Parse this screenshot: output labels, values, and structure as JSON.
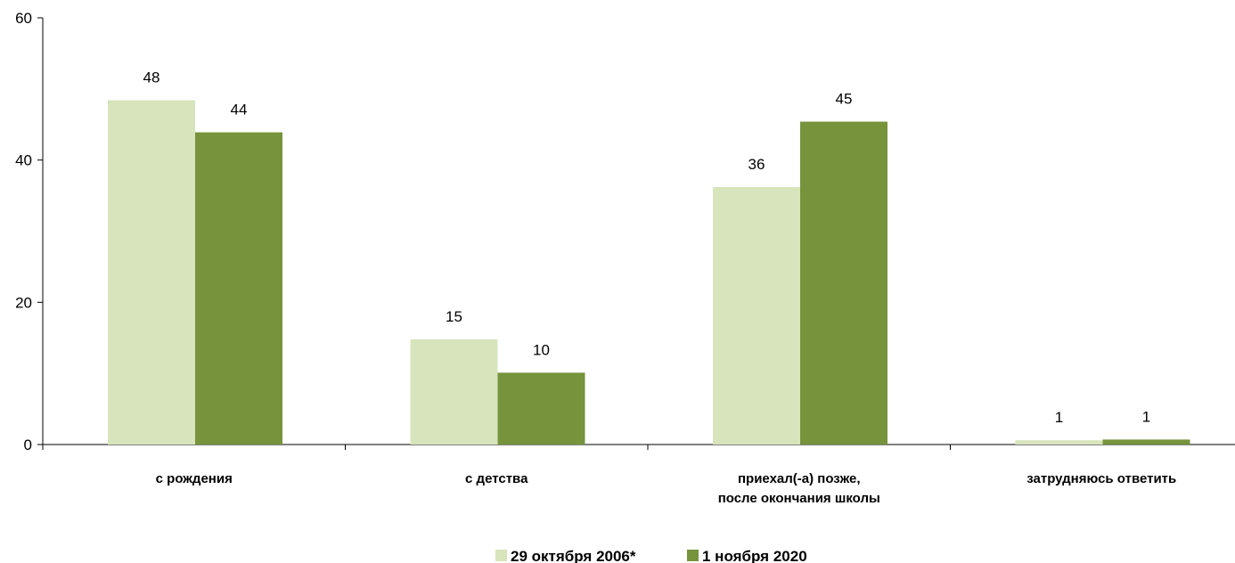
{
  "chart_data": {
    "type": "bar",
    "categories": [
      [
        "с рождения"
      ],
      [
        "с детства"
      ],
      [
        "приехал(-а) позже,",
        "после окончания школы"
      ],
      [
        "затрудняюсь ответить"
      ]
    ],
    "series": [
      {
        "name": "29 октября 2006*",
        "values": [
          48.4,
          14.8,
          36.2,
          0.6
        ],
        "labels": [
          "48",
          "15",
          "36",
          "1"
        ],
        "color": "#d8e4bc"
      },
      {
        "name": "1 ноября 2020",
        "values": [
          43.9,
          10.1,
          45.4,
          0.7
        ],
        "labels": [
          "44",
          "10",
          "45",
          "1"
        ],
        "color": "#77933c"
      }
    ],
    "yticks": [
      "0",
      "20",
      "40",
      "60"
    ],
    "ylim": [
      0,
      60
    ],
    "xlabel": "",
    "ylabel": "",
    "title": "",
    "legend_position": "bottom-center",
    "grid": false
  }
}
